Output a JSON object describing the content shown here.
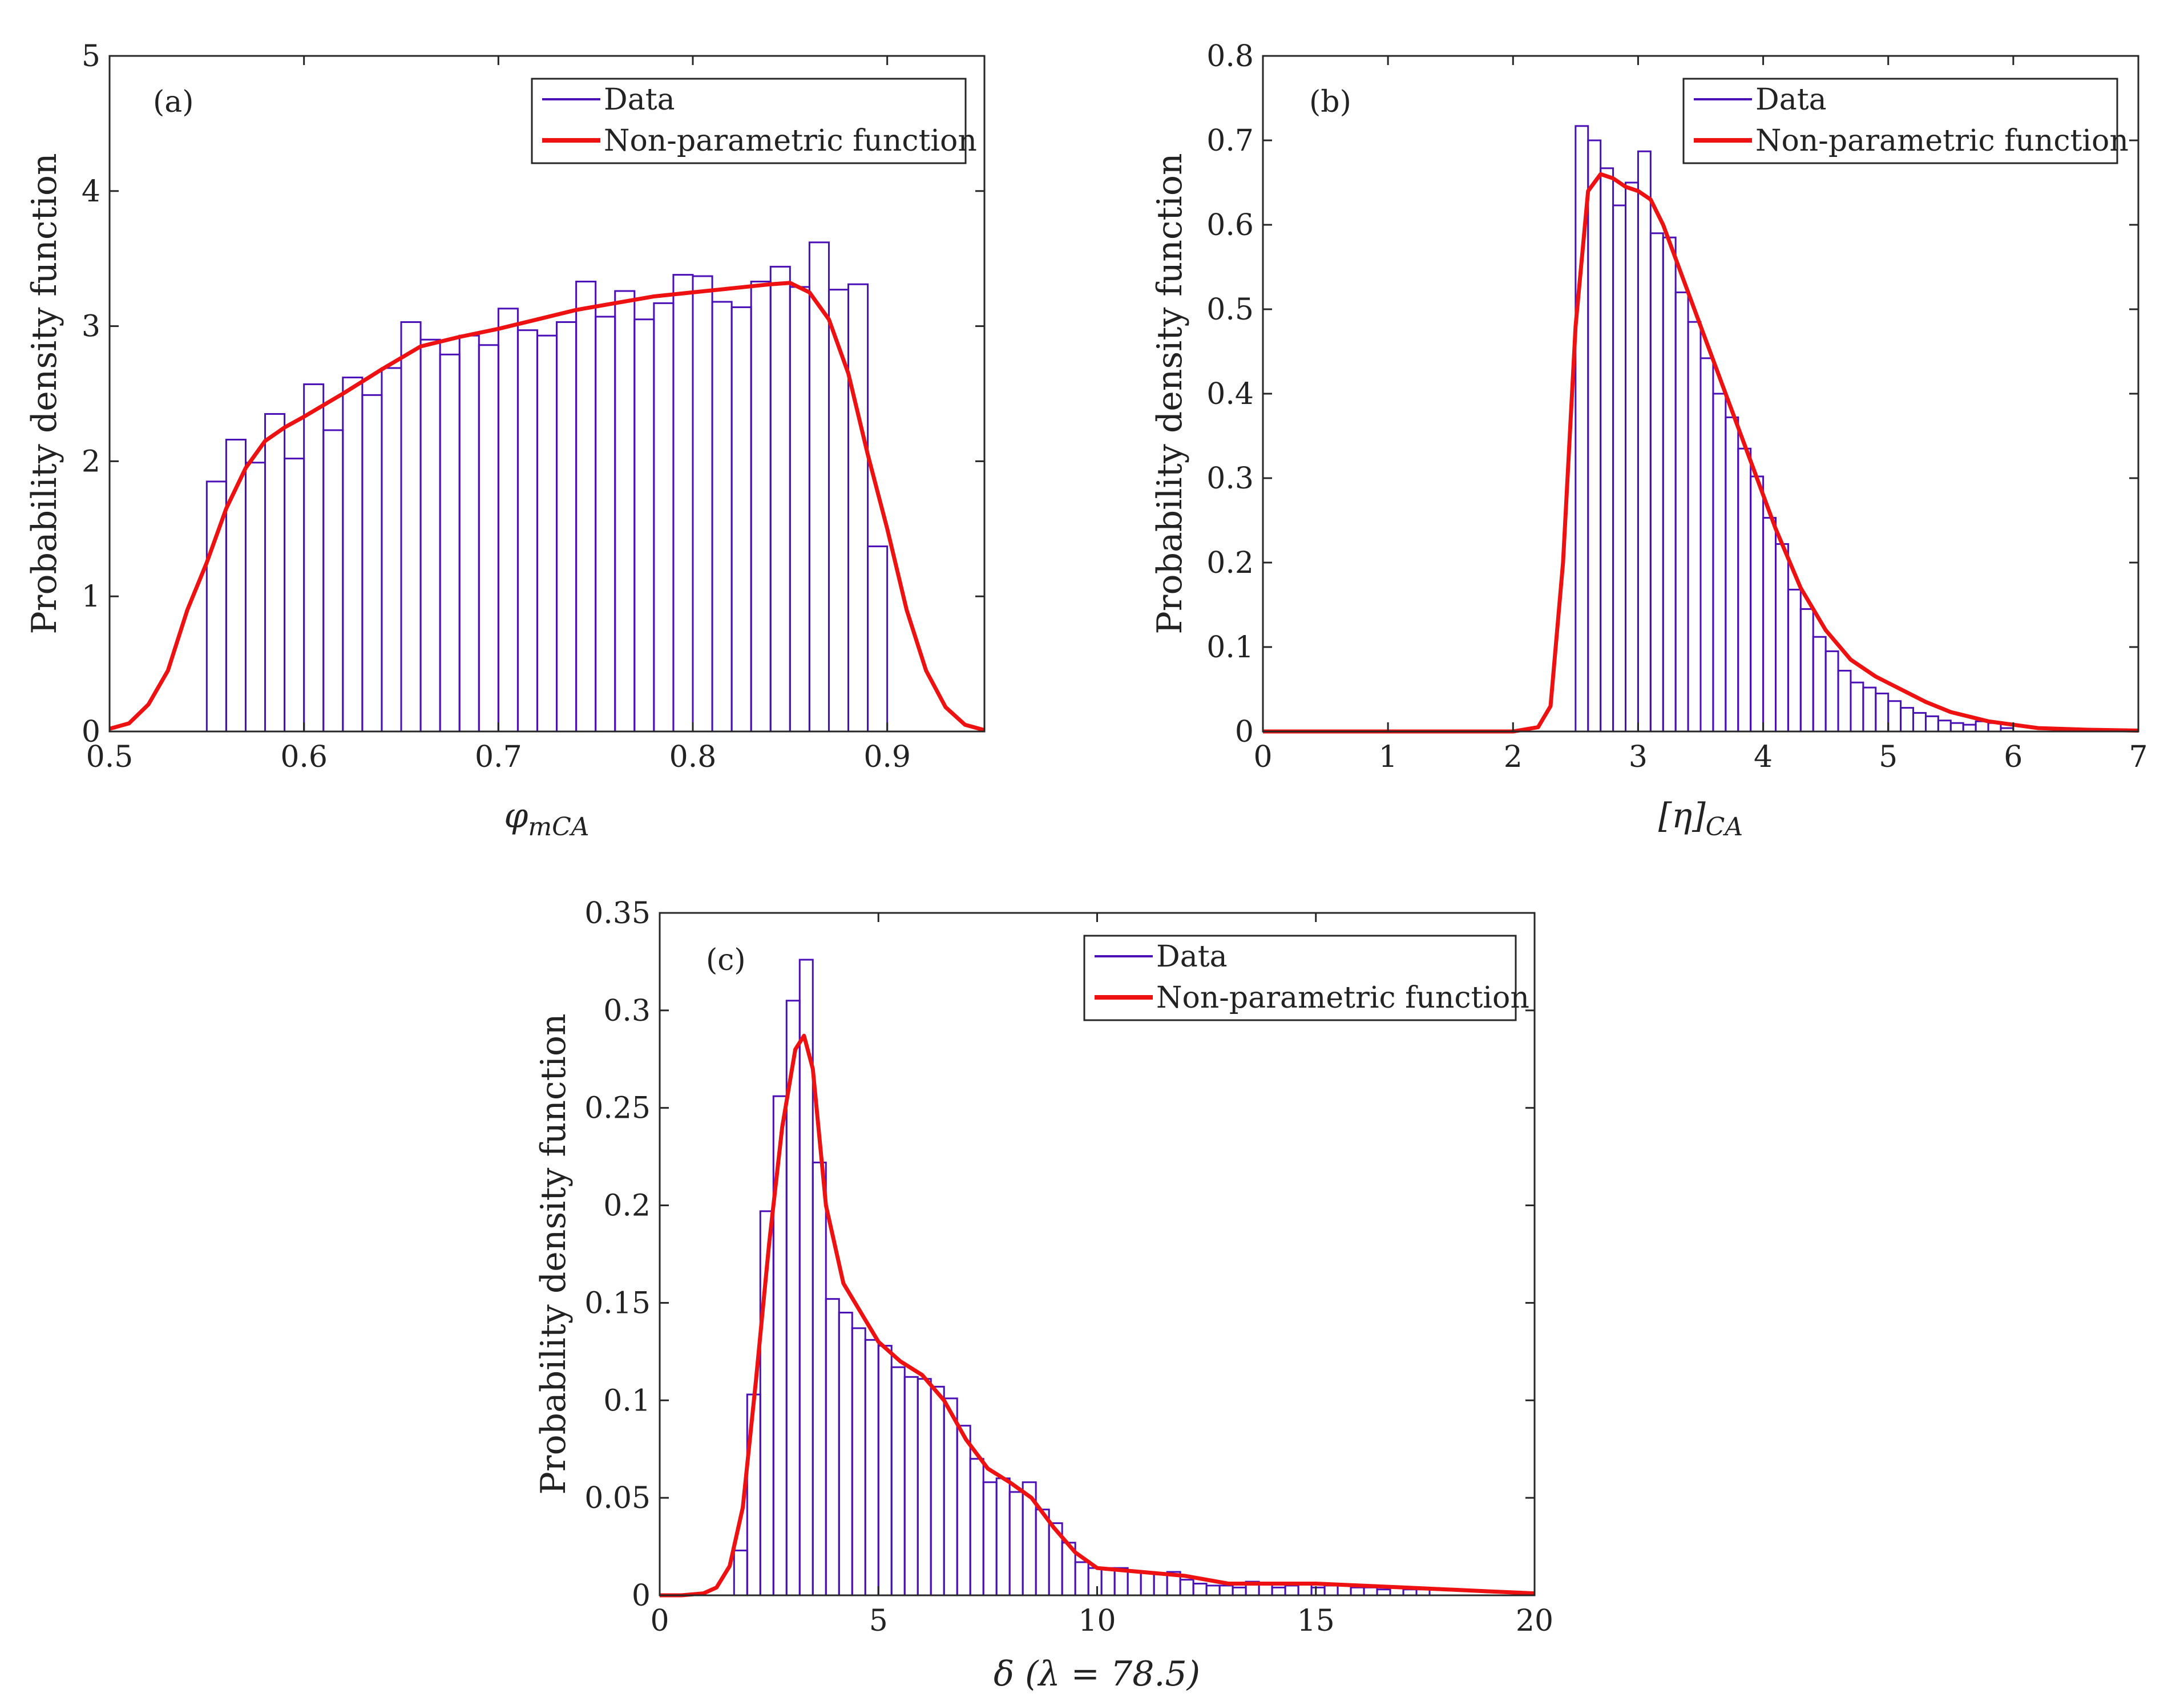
{
  "colors": {
    "data": "#4b0fb8",
    "fit": "#ee1111",
    "axes": "#262626"
  },
  "chart_data": [
    {
      "type": "histogram",
      "panel_label": "(a)",
      "xlabel": "φ",
      "xlabel_sub": "mCA",
      "ylabel": "Probability density function",
      "xlim": [
        0.5,
        0.95
      ],
      "ylim": [
        0,
        5
      ],
      "xticks": [
        0.5,
        0.6,
        0.7,
        0.8,
        0.9
      ],
      "xtick_labels": [
        "0.5",
        "0.6",
        "0.7",
        "0.8",
        "0.9"
      ],
      "yticks": [
        0,
        1,
        2,
        3,
        4,
        5
      ],
      "ytick_labels": [
        "0",
        "1",
        "2",
        "3",
        "4",
        "5"
      ],
      "legend": [
        "Data",
        "Non-parametric function"
      ],
      "bin_edges_start": 0.55,
      "bin_width": 0.01,
      "values": [
        1.85,
        2.16,
        1.99,
        2.35,
        2.02,
        2.57,
        2.23,
        2.62,
        2.49,
        2.69,
        3.03,
        2.9,
        2.79,
        2.93,
        2.86,
        3.13,
        2.97,
        2.93,
        3.03,
        3.33,
        3.07,
        3.26,
        3.05,
        3.17,
        3.38,
        3.37,
        3.18,
        3.14,
        3.33,
        3.44,
        3.29,
        3.62,
        3.27,
        3.31,
        1.37
      ],
      "fit": {
        "x": [
          0.5,
          0.51,
          0.52,
          0.53,
          0.54,
          0.55,
          0.56,
          0.57,
          0.58,
          0.59,
          0.6,
          0.62,
          0.64,
          0.66,
          0.68,
          0.7,
          0.72,
          0.74,
          0.76,
          0.78,
          0.8,
          0.82,
          0.84,
          0.85,
          0.86,
          0.87,
          0.88,
          0.89,
          0.9,
          0.91,
          0.92,
          0.93,
          0.94,
          0.95
        ],
        "y": [
          0.02,
          0.06,
          0.2,
          0.45,
          0.9,
          1.25,
          1.65,
          1.95,
          2.15,
          2.25,
          2.33,
          2.5,
          2.68,
          2.85,
          2.92,
          2.98,
          3.05,
          3.12,
          3.17,
          3.22,
          3.25,
          3.28,
          3.31,
          3.32,
          3.25,
          3.05,
          2.65,
          2.05,
          1.5,
          0.9,
          0.45,
          0.18,
          0.05,
          0.01
        ]
      }
    },
    {
      "type": "histogram",
      "panel_label": "(b)",
      "xlabel": "[η]",
      "xlabel_sub": "CA",
      "ylabel": "Probability density function",
      "xlim": [
        0,
        7
      ],
      "ylim": [
        0,
        0.8
      ],
      "xticks": [
        0,
        1,
        2,
        3,
        4,
        5,
        6,
        7
      ],
      "xtick_labels": [
        "0",
        "1",
        "2",
        "3",
        "4",
        "5",
        "6",
        "7"
      ],
      "yticks": [
        0,
        0.1,
        0.2,
        0.3,
        0.4,
        0.5,
        0.6,
        0.7,
        0.8
      ],
      "ytick_labels": [
        "0",
        "0.1",
        "0.2",
        "0.3",
        "0.4",
        "0.5",
        "0.6",
        "0.7",
        "0.8"
      ],
      "legend": [
        "Data",
        "Non-parametric function"
      ],
      "bin_edges_start": 2.5,
      "bin_width": 0.1,
      "values": [
        0.717,
        0.7,
        0.667,
        0.623,
        0.65,
        0.687,
        0.59,
        0.585,
        0.52,
        0.485,
        0.442,
        0.4,
        0.372,
        0.335,
        0.302,
        0.253,
        0.222,
        0.168,
        0.145,
        0.112,
        0.095,
        0.072,
        0.058,
        0.052,
        0.045,
        0.036,
        0.028,
        0.022,
        0.018,
        0.013,
        0.01,
        0.008,
        0.012,
        0.01,
        0.004
      ],
      "fit": {
        "x": [
          0,
          1,
          2,
          2.2,
          2.3,
          2.4,
          2.5,
          2.6,
          2.7,
          2.8,
          2.9,
          3.0,
          3.1,
          3.2,
          3.3,
          3.5,
          3.7,
          3.9,
          4.1,
          4.3,
          4.5,
          4.7,
          4.9,
          5.1,
          5.3,
          5.5,
          5.8,
          6.2,
          6.6,
          7.0
        ],
        "y": [
          0,
          0,
          0,
          0.005,
          0.03,
          0.2,
          0.48,
          0.64,
          0.66,
          0.655,
          0.645,
          0.64,
          0.63,
          0.6,
          0.56,
          0.48,
          0.4,
          0.32,
          0.24,
          0.17,
          0.12,
          0.085,
          0.065,
          0.05,
          0.035,
          0.023,
          0.012,
          0.004,
          0.002,
          0.001
        ]
      }
    },
    {
      "type": "histogram",
      "panel_label": "(c)",
      "xlabel": "δ (λ = 78.5)",
      "xlabel_sub": "",
      "ylabel": "Probability density function",
      "xlim": [
        0,
        20
      ],
      "ylim": [
        0,
        0.35
      ],
      "xticks": [
        0,
        5,
        10,
        15,
        20
      ],
      "xtick_labels": [
        "0",
        "5",
        "10",
        "15",
        "20"
      ],
      "yticks": [
        0,
        0.05,
        0.1,
        0.15,
        0.2,
        0.25,
        0.3,
        0.35
      ],
      "ytick_labels": [
        "0",
        "0.05",
        "0.1",
        "0.15",
        "0.2",
        "0.25",
        "0.3",
        "0.35"
      ],
      "legend": [
        "Data",
        "Non-parametric function"
      ],
      "bin_edges_start": 1.7,
      "bin_width": 0.3,
      "values": [
        0.023,
        0.103,
        0.197,
        0.256,
        0.305,
        0.326,
        0.222,
        0.152,
        0.145,
        0.137,
        0.131,
        0.128,
        0.117,
        0.112,
        0.111,
        0.107,
        0.101,
        0.087,
        0.07,
        0.058,
        0.06,
        0.053,
        0.058,
        0.044,
        0.037,
        0.027,
        0.017,
        0.014,
        0.014,
        0.014,
        0.012,
        0.012,
        0.011,
        0.012,
        0.008,
        0.006,
        0.005,
        0.005,
        0.004,
        0.007,
        0.006,
        0.004,
        0.005,
        0.006,
        0.004,
        0.005,
        0.005,
        0.004,
        0.004,
        0.003,
        0.004,
        0.003,
        0.003
      ],
      "fit": {
        "x": [
          0,
          0.5,
          1.0,
          1.3,
          1.6,
          1.9,
          2.2,
          2.5,
          2.8,
          3.1,
          3.3,
          3.5,
          3.8,
          4.2,
          4.6,
          5.0,
          5.5,
          6.0,
          6.5,
          7.0,
          7.5,
          8.0,
          8.5,
          9.0,
          9.5,
          10.0,
          11.0,
          12.0,
          13.0,
          14.0,
          15.0,
          16.0,
          17.0,
          18.0,
          19.0,
          20.0
        ],
        "y": [
          0,
          0,
          0.001,
          0.004,
          0.015,
          0.045,
          0.11,
          0.18,
          0.24,
          0.28,
          0.287,
          0.27,
          0.2,
          0.16,
          0.145,
          0.13,
          0.12,
          0.113,
          0.1,
          0.08,
          0.065,
          0.058,
          0.05,
          0.035,
          0.022,
          0.014,
          0.012,
          0.01,
          0.006,
          0.006,
          0.006,
          0.005,
          0.004,
          0.003,
          0.002,
          0.001
        ]
      }
    }
  ]
}
